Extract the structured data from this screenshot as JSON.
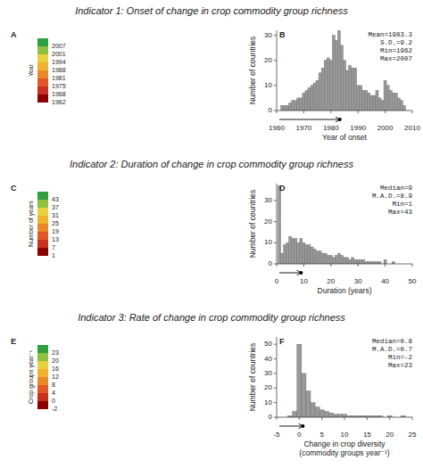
{
  "chart_data": [
    {
      "type": "map",
      "title": "Indicator 1: Onset of change in crop commodity group richness",
      "label": "A",
      "colorbar_label": "Year",
      "colorbar_ticks": [
        1962,
        1968,
        1975,
        1981,
        1988,
        1994,
        2001,
        2007
      ],
      "colors": [
        "#8b0000",
        "#c83020",
        "#e05828",
        "#e88828",
        "#f0b030",
        "#e8d040",
        "#90c040",
        "#2ea040"
      ]
    },
    {
      "type": "bar",
      "label": "B",
      "xlabel": "Year of onset",
      "ylabel": "Number of countries",
      "annotation": "Mean=1983.3\nS.D.=9.2\nMin=1962\nMax=2007",
      "x": [
        1962,
        1963,
        1964,
        1965,
        1966,
        1967,
        1968,
        1969,
        1970,
        1971,
        1972,
        1973,
        1974,
        1975,
        1976,
        1977,
        1978,
        1979,
        1980,
        1981,
        1982,
        1983,
        1984,
        1985,
        1986,
        1987,
        1988,
        1989,
        1990,
        1991,
        1992,
        1993,
        1994,
        1995,
        1996,
        1997,
        1998,
        1999,
        2000,
        2001,
        2002,
        2003,
        2004,
        2005,
        2006,
        2007
      ],
      "values": [
        2,
        2,
        2,
        3,
        4,
        4,
        5,
        5,
        7,
        8,
        9,
        10,
        11,
        12,
        15,
        17,
        20,
        21,
        20,
        30,
        28,
        32,
        26,
        20,
        16,
        18,
        17,
        17,
        10,
        10,
        8,
        8,
        7,
        6,
        6,
        8,
        5,
        4,
        12,
        10,
        8,
        7,
        7,
        5,
        4,
        2
      ],
      "color": "#999999",
      "xlim": [
        1960,
        2010
      ],
      "ylim": [
        0,
        32
      ],
      "xticks": [
        1960,
        1970,
        1980,
        1990,
        2000,
        2010
      ],
      "yticks": [
        0,
        10,
        20,
        30
      ],
      "median_x": 1983.3
    },
    {
      "type": "map",
      "title": "Indicator 2: Duration of change in crop commodity group richness",
      "label": "C",
      "colorbar_label": "Number of years",
      "colorbar_ticks": [
        1,
        7,
        13,
        19,
        25,
        31,
        37,
        43
      ],
      "colors": [
        "#8b0000",
        "#c83020",
        "#e05828",
        "#e88828",
        "#f0b030",
        "#e8d040",
        "#90c040",
        "#2ea040"
      ]
    },
    {
      "type": "bar",
      "label": "D",
      "xlabel": "Duration (years)",
      "ylabel": "Number of countries",
      "annotation": "Median=9\nM.A.D.=8.9\nMin=1\nMax=43",
      "x": [
        1,
        2,
        3,
        4,
        5,
        6,
        7,
        8,
        9,
        10,
        11,
        12,
        13,
        14,
        15,
        16,
        17,
        18,
        19,
        20,
        21,
        22,
        23,
        24,
        25,
        26,
        27,
        28,
        29,
        30,
        31,
        32,
        33,
        34,
        35,
        36,
        37,
        38,
        40,
        43
      ],
      "values": [
        37,
        5,
        9,
        10,
        13,
        12,
        12,
        10,
        12,
        10,
        9,
        9,
        8,
        7,
        6,
        6,
        5,
        5,
        4,
        4,
        3,
        4,
        5,
        4,
        3,
        3,
        2,
        3,
        2,
        2,
        2,
        2,
        1,
        1,
        1,
        1,
        1,
        1,
        2,
        1
      ],
      "color": "#999999",
      "xlim": [
        0,
        50
      ],
      "ylim": [
        0,
        38
      ],
      "xticks": [
        0,
        10,
        20,
        30,
        40,
        50
      ],
      "yticks": [
        0,
        10,
        20,
        30
      ],
      "median_x": 9
    },
    {
      "type": "map",
      "title": "Indicator 3: Rate of change in crop commodity group richness",
      "label": "E",
      "colorbar_label": "Crop groups year⁻¹",
      "colorbar_ticks": [
        -2,
        0,
        4,
        8,
        12,
        16,
        20,
        23
      ],
      "colors": [
        "#8b0000",
        "#c83020",
        "#e05828",
        "#e88828",
        "#f0b030",
        "#e8d040",
        "#90c040",
        "#2ea040"
      ]
    },
    {
      "type": "bar",
      "label": "F",
      "xlabel": "Change in crop diversity\n(commodity groups year⁻¹)",
      "ylabel": "Number of countries",
      "annotation": "Median=0.8\nM.A.D.=0.7\nMin=-2\nMax=23",
      "x": [
        -2,
        -1,
        0,
        1,
        2,
        3,
        4,
        5,
        6,
        7,
        8,
        9,
        10,
        11,
        12,
        13,
        14,
        15,
        16,
        17,
        18,
        20,
        23
      ],
      "values": [
        1,
        4,
        50,
        30,
        18,
        10,
        7,
        5,
        4,
        3,
        2,
        2,
        2,
        1,
        1,
        1,
        1,
        1,
        1,
        1,
        1,
        1,
        1
      ],
      "color": "#999999",
      "xlim": [
        -5,
        25
      ],
      "ylim": [
        0,
        55
      ],
      "xticks": [
        -5,
        0,
        5,
        10,
        15,
        20,
        25
      ],
      "yticks": [
        0,
        10,
        20,
        30,
        40,
        50
      ],
      "median_x": 0.8
    }
  ]
}
